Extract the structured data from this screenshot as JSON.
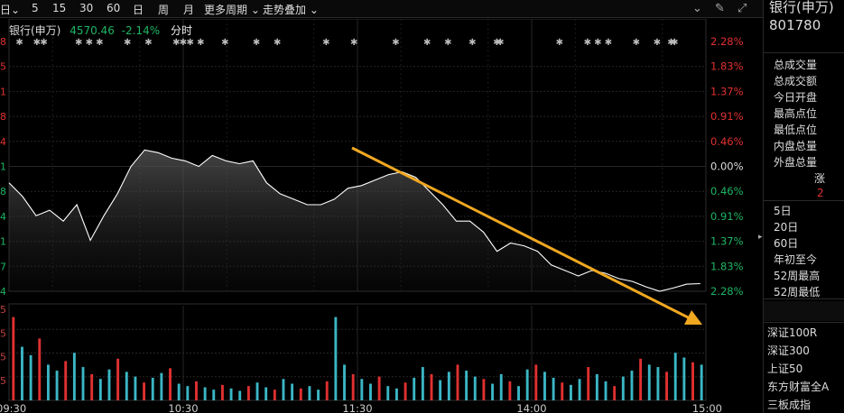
{
  "toolbar": {
    "period_partial": "日",
    "periods": [
      "5",
      "15",
      "30",
      "60",
      "日",
      "周",
      "月"
    ],
    "more_periods": "更多周期",
    "overlay": "走势叠加"
  },
  "header": {
    "name": "银行(申万)",
    "price": "4570.46",
    "change": "-2.14%",
    "mode": "分时"
  },
  "chart_data": {
    "type": "line",
    "x_labels": [
      "09:30",
      "10:30",
      "11:30",
      "14:00",
      "15:00"
    ],
    "y_pct_labels": [
      "2.28%",
      "1.83%",
      "1.37%",
      "0.91%",
      "0.46%",
      "0.00%",
      "0.46%",
      "0.91%",
      "1.37%",
      "1.83%",
      "2.28%"
    ],
    "y_left_partial": [
      "8",
      "5",
      "1",
      "8",
      "4",
      "1",
      "8",
      "4",
      "1",
      "7",
      "4"
    ],
    "vol_left_partial": [
      "5",
      "5",
      "5",
      "5"
    ],
    "ylim_pct": [
      -2.28,
      2.28
    ],
    "price_pct": [
      -0.3,
      -0.55,
      -0.9,
      -0.8,
      -1.0,
      -0.7,
      -1.35,
      -0.9,
      -0.5,
      0.0,
      0.3,
      0.25,
      0.15,
      0.1,
      0.0,
      0.2,
      0.1,
      0.05,
      0.1,
      -0.3,
      -0.5,
      -0.6,
      -0.7,
      -0.7,
      -0.6,
      -0.4,
      -0.35,
      -0.25,
      -0.15,
      -0.1,
      -0.2,
      -0.45,
      -0.7,
      -1.0,
      -1.0,
      -1.2,
      -1.55,
      -1.4,
      -1.45,
      -1.55,
      -1.8,
      -1.9,
      -2.0,
      -1.9,
      -1.95,
      -2.05,
      -2.1,
      -2.2,
      -2.28,
      -2.22,
      -2.15,
      -2.14
    ],
    "volume": [
      70,
      45,
      38,
      52,
      30,
      25,
      33,
      40,
      28,
      22,
      18,
      26,
      35,
      24,
      20,
      15,
      19,
      23,
      27,
      14,
      12,
      16,
      11,
      9,
      13,
      10,
      8,
      12,
      15,
      11,
      9,
      18,
      14,
      10,
      12,
      9,
      16,
      70,
      30,
      22,
      18,
      14,
      20,
      12,
      10,
      15,
      19,
      28,
      22,
      17,
      24,
      30,
      25,
      20,
      18,
      14,
      22,
      16,
      12,
      26,
      30,
      24,
      19,
      15,
      13,
      18,
      28,
      22,
      16,
      12,
      20,
      25,
      35,
      30,
      28,
      24,
      40,
      36,
      32,
      30
    ],
    "volume_colors": [
      "#e03030",
      "#3bb6c4"
    ],
    "marker_positions": [
      0.015,
      0.04,
      0.05,
      0.1,
      0.115,
      0.13,
      0.17,
      0.2,
      0.24,
      0.25,
      0.26,
      0.275,
      0.31,
      0.355,
      0.385,
      0.455,
      0.495,
      0.555,
      0.6,
      0.63,
      0.665,
      0.7,
      0.705,
      0.79,
      0.83,
      0.845,
      0.86,
      0.9,
      0.93,
      0.95,
      0.955
    ],
    "line_color": "#ffffff",
    "pct_up_color": "#e03030",
    "pct_down_color": "#1eb464",
    "arrow_color": "#f0a820",
    "grid": true
  },
  "right_panel": {
    "name": "银行(申万)",
    "code": "801780",
    "stats": [
      "总成交量",
      "总成交额",
      "今日开盘",
      "最高点位",
      "最低点位",
      "内盘总量",
      "外盘总量"
    ],
    "zhang_label": "涨",
    "zhang_value": "2",
    "period_stats": [
      "5日",
      "20日",
      "60日",
      "年初至今",
      "52周最高",
      "52周最低"
    ],
    "related_indices": [
      "深证100R",
      "深证300",
      "上证50",
      "东方财富全A",
      "三板成指"
    ]
  }
}
